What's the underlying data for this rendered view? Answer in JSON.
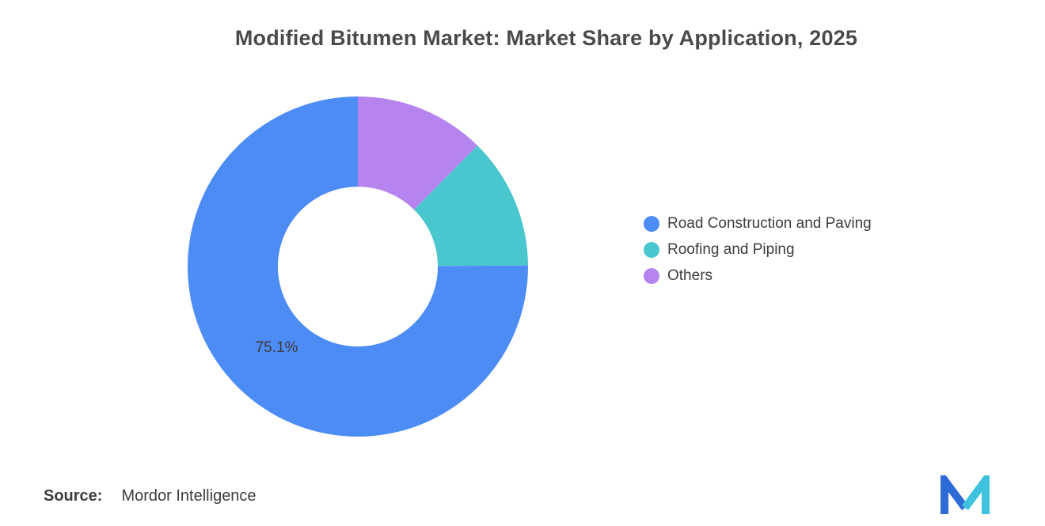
{
  "title": "Modified Bitumen Market: Market Share by Application, 2025",
  "source": {
    "prefix": "Source:",
    "text": "Mordor Intelligence"
  },
  "chart_data": {
    "type": "pie",
    "subtype": "donut",
    "title": "Modified Bitumen Market: Market Share by Application, 2025",
    "series": [
      {
        "label": "Road Construction and Paving",
        "value": 75.1,
        "color": "#4D8CF5",
        "data_label": "75.1%"
      },
      {
        "label": "Roofing and Piping",
        "value": 12.5,
        "color": "#4AC6CE",
        "data_label": ""
      },
      {
        "label": "Others",
        "value": 12.4,
        "color": "#B584EE",
        "data_label": ""
      }
    ],
    "start_angle_deg": 0,
    "direction": "clockwise",
    "draw_order": "reverse-legend",
    "inner_radius_ratio": 0.47,
    "legend_position": "right",
    "data_label_color": "#3b3b3b"
  },
  "logo": {
    "name": "Mordor Intelligence logo",
    "blue": "#2E6BD6",
    "teal": "#3EC2DE"
  }
}
